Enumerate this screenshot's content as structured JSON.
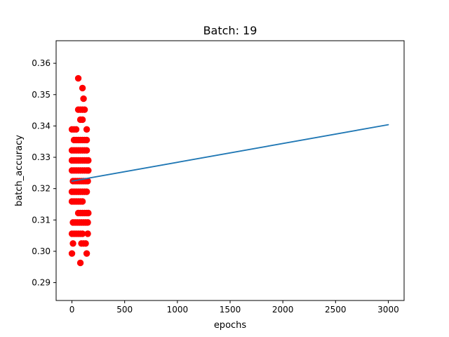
{
  "chart_data": {
    "type": "scatter",
    "title": "Batch: 19",
    "xlabel": "epochs",
    "ylabel": "batch_accuracy",
    "xlim": [
      -150,
      3150
    ],
    "ylim": [
      0.2843,
      0.3672
    ],
    "xticks": [
      0,
      500,
      1000,
      1500,
      2000,
      2500,
      3000
    ],
    "yticks": [
      0.29,
      0.3,
      0.31,
      0.32,
      0.33,
      0.34,
      0.35,
      0.36
    ],
    "xtick_labels": [
      "0",
      "500",
      "1000",
      "1500",
      "2000",
      "2500",
      "3000"
    ],
    "ytick_labels": [
      "0.29",
      "0.30",
      "0.31",
      "0.32",
      "0.33",
      "0.34",
      "0.35",
      "0.36"
    ],
    "grid": false,
    "colors": {
      "points": "#ff0000",
      "line": "#1f77b4"
    },
    "series": [
      {
        "type": "line",
        "x": [
          0,
          3000
        ],
        "y": [
          0.3224,
          0.3404
        ]
      },
      {
        "type": "scatter",
        "points": [
          [
            0,
            0.2993
          ],
          [
            0,
            0.3056
          ],
          [
            0,
            0.3159
          ],
          [
            0,
            0.319
          ],
          [
            0,
            0.3258
          ],
          [
            0,
            0.329
          ],
          [
            0,
            0.3322
          ],
          [
            0,
            0.3389
          ],
          [
            10,
            0.3025
          ],
          [
            10,
            0.3092
          ],
          [
            10,
            0.3224
          ],
          [
            20,
            0.3056
          ],
          [
            20,
            0.3159
          ],
          [
            20,
            0.319
          ],
          [
            20,
            0.3258
          ],
          [
            20,
            0.329
          ],
          [
            20,
            0.3322
          ],
          [
            20,
            0.3355
          ],
          [
            20,
            0.3389
          ],
          [
            30,
            0.3092
          ],
          [
            30,
            0.3224
          ],
          [
            40,
            0.3056
          ],
          [
            40,
            0.3159
          ],
          [
            40,
            0.319
          ],
          [
            40,
            0.3258
          ],
          [
            40,
            0.329
          ],
          [
            40,
            0.3322
          ],
          [
            40,
            0.3355
          ],
          [
            40,
            0.3389
          ],
          [
            50,
            0.3092
          ],
          [
            50,
            0.3224
          ],
          [
            60,
            0.3056
          ],
          [
            60,
            0.3122
          ],
          [
            60,
            0.3159
          ],
          [
            60,
            0.319
          ],
          [
            60,
            0.3258
          ],
          [
            60,
            0.329
          ],
          [
            60,
            0.3322
          ],
          [
            60,
            0.3355
          ],
          [
            60,
            0.3452
          ],
          [
            60,
            0.3552
          ],
          [
            70,
            0.3092
          ],
          [
            70,
            0.3224
          ],
          [
            80,
            0.2963
          ],
          [
            80,
            0.3056
          ],
          [
            80,
            0.3122
          ],
          [
            80,
            0.3159
          ],
          [
            80,
            0.319
          ],
          [
            80,
            0.3258
          ],
          [
            80,
            0.329
          ],
          [
            80,
            0.3322
          ],
          [
            80,
            0.3355
          ],
          [
            80,
            0.342
          ],
          [
            80,
            0.3452
          ],
          [
            90,
            0.3025
          ],
          [
            90,
            0.3092
          ],
          [
            90,
            0.3224
          ],
          [
            100,
            0.3056
          ],
          [
            100,
            0.3122
          ],
          [
            100,
            0.3159
          ],
          [
            100,
            0.319
          ],
          [
            100,
            0.3258
          ],
          [
            100,
            0.329
          ],
          [
            100,
            0.3322
          ],
          [
            100,
            0.3355
          ],
          [
            100,
            0.342
          ],
          [
            100,
            0.3452
          ],
          [
            100,
            0.3521
          ],
          [
            110,
            0.3025
          ],
          [
            110,
            0.3092
          ],
          [
            110,
            0.3224
          ],
          [
            110,
            0.3487
          ],
          [
            120,
            0.3122
          ],
          [
            120,
            0.319
          ],
          [
            120,
            0.3258
          ],
          [
            120,
            0.329
          ],
          [
            120,
            0.3322
          ],
          [
            120,
            0.3355
          ],
          [
            120,
            0.3452
          ],
          [
            130,
            0.3025
          ],
          [
            130,
            0.3092
          ],
          [
            130,
            0.3224
          ],
          [
            140,
            0.2993
          ],
          [
            140,
            0.3122
          ],
          [
            140,
            0.319
          ],
          [
            140,
            0.3258
          ],
          [
            140,
            0.329
          ],
          [
            140,
            0.3322
          ],
          [
            140,
            0.3355
          ],
          [
            140,
            0.3389
          ],
          [
            150,
            0.3056
          ],
          [
            150,
            0.3092
          ],
          [
            150,
            0.3224
          ],
          [
            155,
            0.3122
          ],
          [
            155,
            0.3258
          ],
          [
            155,
            0.329
          ]
        ]
      }
    ]
  }
}
